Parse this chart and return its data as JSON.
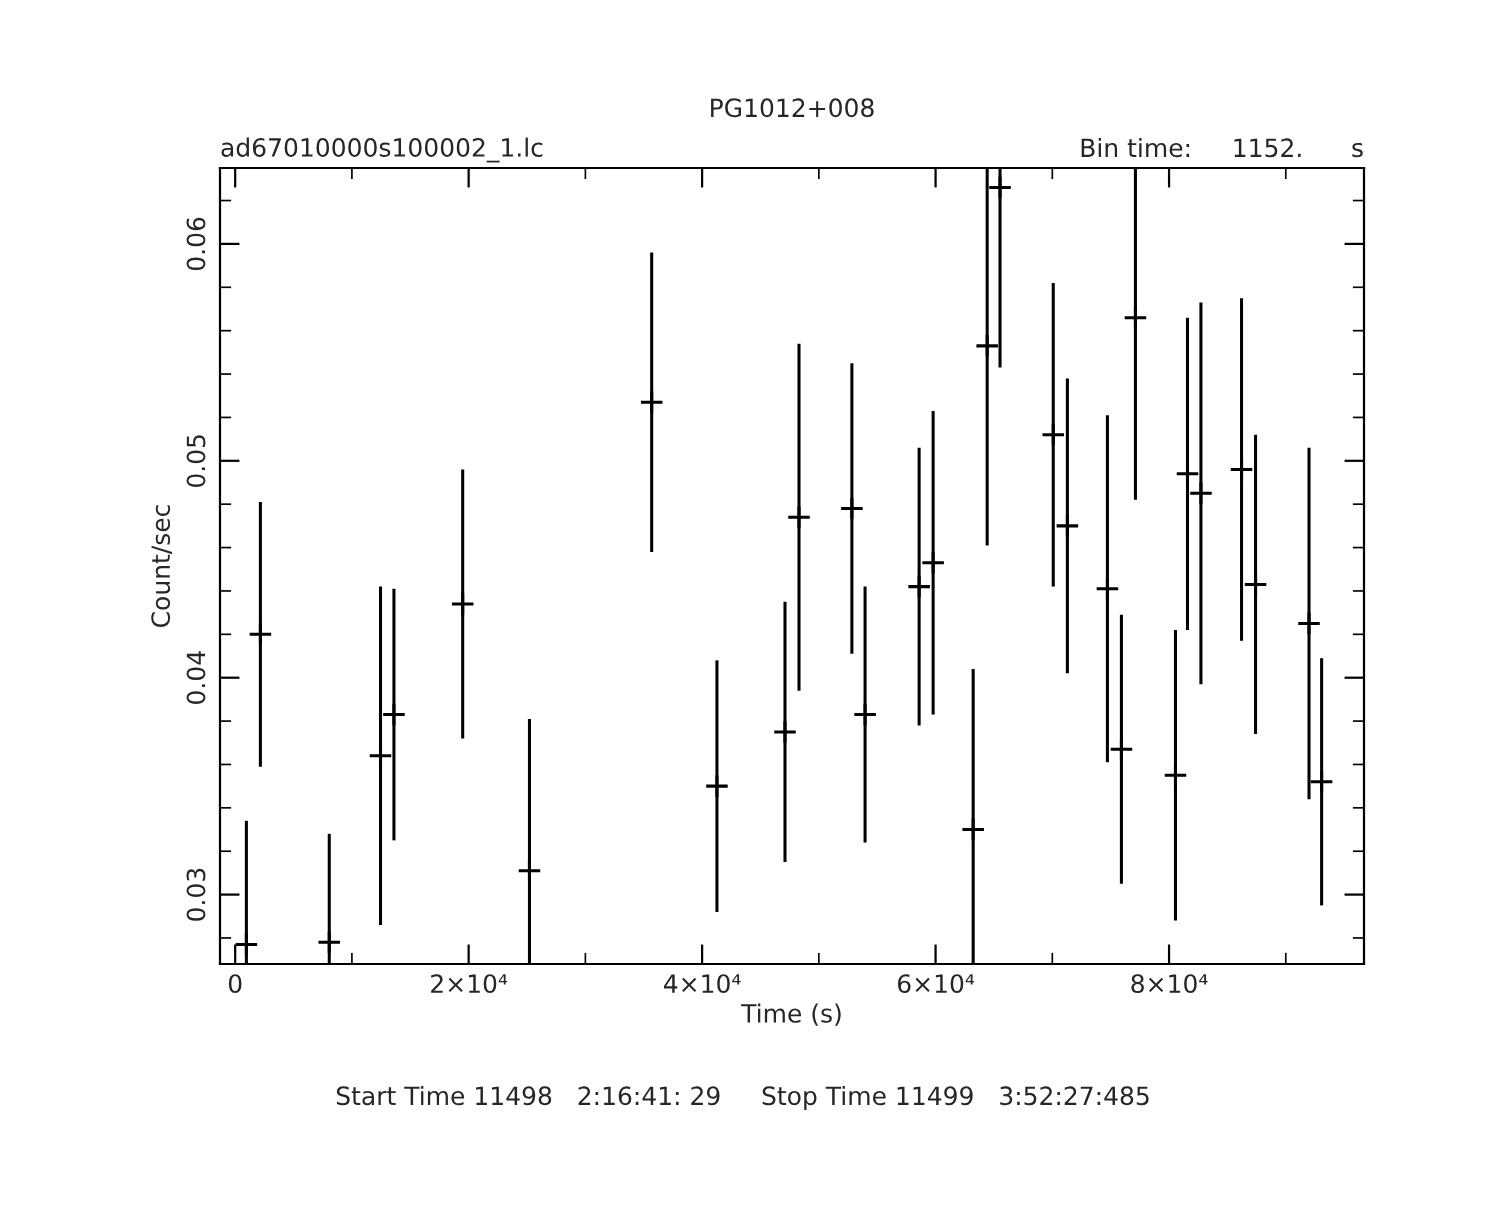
{
  "chart_data": {
    "type": "scatter",
    "title": "PG1012+008",
    "subtitle": "ad67010000s100002_1.lc",
    "xlabel": "Time (s)",
    "ylabel": "Count/sec",
    "annotations": [
      "Bin time:     1152.      s",
      "Start Time 11498   2:16:41: 29     Stop Time 11499   3:52:27:485"
    ],
    "x": [
      960,
      2160,
      8060,
      12450,
      13600,
      19490,
      25210,
      35680,
      41270,
      47100,
      48300,
      52830,
      53960,
      58590,
      59790,
      63220,
      64420,
      65520,
      70080,
      71290,
      74720,
      75920,
      77120,
      80550,
      81580,
      82730,
      86210,
      87410,
      91990,
      93070
    ],
    "series": [
      {
        "color": "#000000",
        "values": [
          0.0277,
          0.042,
          0.0278,
          0.0364,
          0.0383,
          0.0434,
          0.0311,
          0.0527,
          0.035,
          0.0375,
          0.0474,
          0.0478,
          0.0383,
          0.0442,
          0.0453,
          0.033,
          0.0553,
          0.0626,
          0.0512,
          0.047,
          0.0441,
          0.0367,
          0.0566,
          0.0355,
          0.0494,
          0.0485,
          0.0496,
          0.0443,
          0.0425,
          0.0352
        ],
        "errors": [
          0.0057,
          0.0061,
          0.005,
          0.0078,
          0.0058,
          0.0062,
          0.007,
          0.0069,
          0.0058,
          0.006,
          0.008,
          0.0067,
          0.0059,
          0.0064,
          0.007,
          0.0074,
          0.0092,
          0.0083,
          0.007,
          0.0068,
          0.008,
          0.0062,
          0.0084,
          0.0067,
          0.0072,
          0.0088,
          0.0079,
          0.0069,
          0.0081,
          0.0057
        ]
      }
    ],
    "xlim": [
      -1300,
      96700
    ],
    "ylim": [
      0.0268,
      0.0635
    ],
    "xticks": [
      0,
      {
        "value": 20000,
        "label": "2×10⁴"
      },
      {
        "value": 40000,
        "label": "4×10⁴"
      },
      {
        "value": 60000,
        "label": "6×10⁴"
      },
      {
        "value": 80000,
        "label": "8×10⁴"
      }
    ],
    "yticks": [
      0.03,
      0.04,
      0.05,
      0.06
    ],
    "marker": "cross",
    "grid": false
  }
}
